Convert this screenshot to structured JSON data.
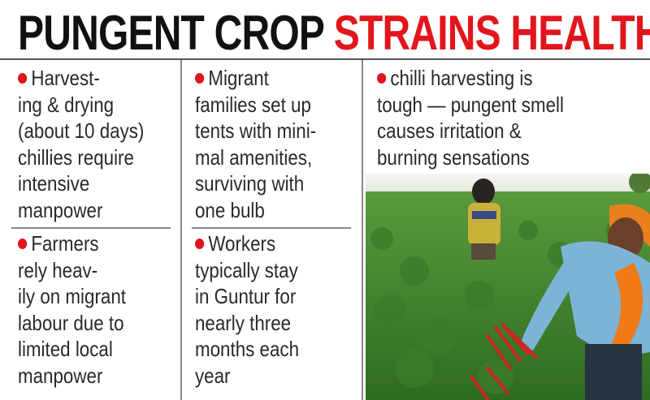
{
  "headline": {
    "part1": "PUNGENT CROP",
    "part2": "STRAINS HEALTH"
  },
  "colors": {
    "accent_red": "#e3151c",
    "text": "#2a2a2a",
    "field_green": "#3f7d2c"
  },
  "bullets": [
    {
      "lines": [
        "Harvest-",
        "ing & drying",
        "(about 10 days)",
        "chillies require",
        "intensive",
        "manpower"
      ]
    },
    {
      "lines": [
        "Farmers",
        "rely heav-",
        "ily on migrant",
        "labour due to",
        "limited local",
        "manpower"
      ]
    },
    {
      "lines": [
        "Migrant",
        "families set up",
        "tents with mini-",
        "mal amenities,",
        "surviving with",
        "one bulb"
      ]
    },
    {
      "lines": [
        "Workers",
        "typically stay",
        "in Guntur for",
        "nearly three",
        "months each",
        "year"
      ]
    },
    {
      "lines": [
        "chilli harvesting is",
        "tough — pungent smell",
        "causes irritation &",
        "burning sensations"
      ]
    }
  ],
  "photo": {
    "subject": "workers harvesting red chillies in a green field"
  }
}
